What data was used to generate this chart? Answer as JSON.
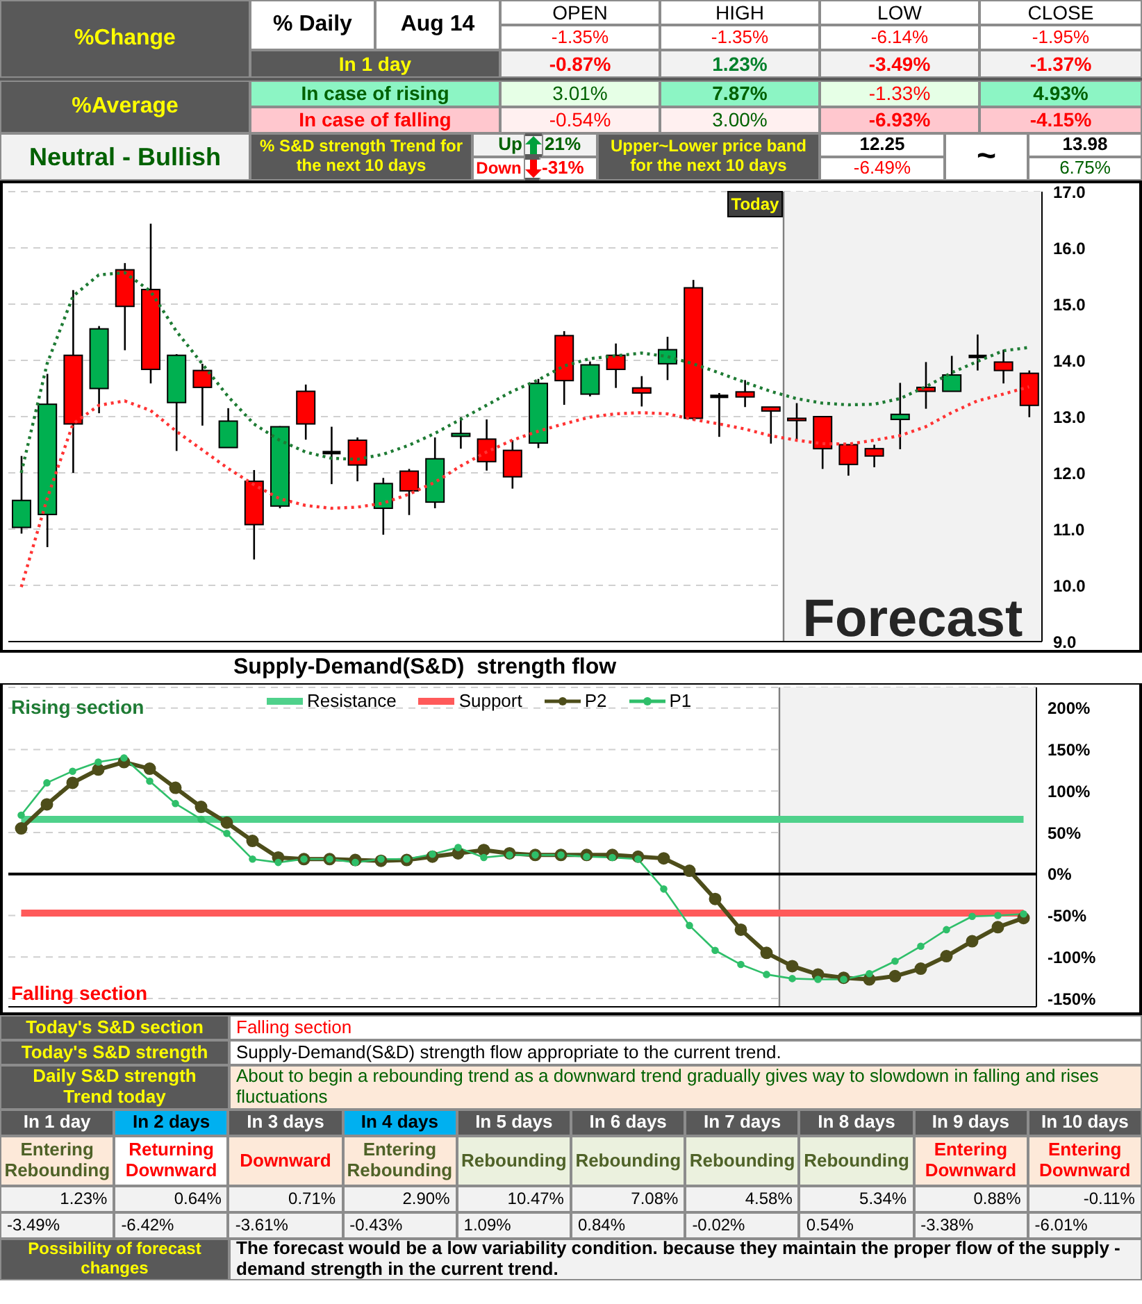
{
  "chart_data": [
    {
      "type": "other",
      "annotations": [
        "%Change",
        "% Daily",
        "Aug 14",
        "OPEN",
        "HIGH",
        "LOW",
        "CLOSE",
        "-1.35%",
        "-1.35%",
        "-6.14%",
        "-1.95%",
        "In 1 day",
        "-0.87%",
        "1.23%",
        "-3.49%",
        "-1.37%",
        "%Average",
        "In case of rising",
        "3.01%",
        "7.87%",
        "-1.33%",
        "4.93%",
        "In case of falling",
        "-0.54%",
        "3.00%",
        "-6.93%",
        "-4.15%",
        "Neutral - Bullish",
        "% S&D strength Trend for the next 10 days",
        "Up",
        "21%",
        "Down",
        "-31%",
        "Upper~Lower price band for the next 10 days",
        "12.25",
        "-6.49%",
        "~",
        "13.98",
        "6.75%"
      ]
    },
    {
      "type": "candlestick",
      "categories": [
        null,
        null,
        null,
        null,
        null,
        null,
        null,
        null,
        null,
        null,
        null,
        null,
        null,
        null,
        null,
        null,
        null,
        null,
        null,
        null,
        null,
        null,
        null,
        null,
        null,
        null,
        null,
        null,
        null,
        null,
        null,
        null,
        null,
        null,
        null,
        null,
        null,
        null,
        null,
        null
      ],
      "tick_labels": "y",
      "ohlc": [
        [
          11.03,
          12.3,
          10.92,
          11.51
        ],
        [
          11.26,
          13.76,
          10.68,
          13.22
        ],
        [
          14.09,
          15.25,
          12.0,
          12.87
        ],
        [
          13.5,
          14.61,
          13.06,
          14.56
        ],
        [
          15.61,
          15.73,
          14.18,
          14.96
        ],
        [
          15.26,
          16.43,
          13.59,
          13.84
        ],
        [
          13.25,
          14.11,
          12.39,
          14.09
        ],
        [
          13.82,
          13.94,
          12.84,
          13.52
        ],
        [
          12.45,
          13.15,
          12.45,
          12.92
        ],
        [
          11.85,
          12.05,
          10.46,
          11.08
        ],
        [
          11.41,
          12.83,
          11.37,
          12.82
        ],
        [
          13.45,
          13.57,
          12.59,
          12.87
        ],
        [
          12.36,
          12.82,
          11.8,
          12.36
        ],
        [
          12.58,
          12.63,
          11.85,
          12.14
        ],
        [
          11.37,
          11.91,
          10.9,
          11.81
        ],
        [
          12.03,
          12.07,
          11.25,
          11.68
        ],
        [
          11.48,
          12.63,
          11.37,
          12.25
        ],
        [
          12.65,
          12.99,
          12.43,
          12.7
        ],
        [
          12.6,
          12.95,
          12.04,
          12.2
        ],
        [
          12.4,
          12.58,
          11.72,
          11.93
        ],
        [
          12.53,
          13.67,
          12.44,
          13.59
        ],
        [
          14.44,
          14.52,
          13.21,
          13.64
        ],
        [
          13.4,
          13.98,
          13.36,
          13.92
        ],
        [
          14.09,
          14.3,
          13.51,
          13.84
        ],
        [
          13.51,
          13.72,
          13.18,
          13.42
        ],
        [
          13.94,
          14.42,
          13.65,
          14.19
        ],
        [
          15.29,
          15.43,
          12.93,
          12.97
        ],
        [
          13.36,
          13.42,
          12.64,
          13.36
        ],
        [
          13.44,
          13.65,
          13.17,
          13.35
        ],
        [
          13.17,
          13.17,
          12.52,
          13.1
        ],
        [
          12.97,
          13.24,
          12.6,
          12.93
        ],
        [
          13.0,
          13.0,
          12.07,
          12.43
        ],
        [
          12.5,
          12.5,
          11.95,
          12.15
        ],
        [
          12.43,
          12.5,
          12.1,
          12.3
        ],
        [
          12.95,
          13.6,
          12.42,
          13.04
        ],
        [
          13.52,
          13.97,
          13.14,
          13.45
        ],
        [
          13.45,
          14.08,
          13.45,
          13.74
        ],
        [
          14.07,
          14.46,
          13.82,
          14.07
        ],
        [
          13.97,
          14.19,
          13.59,
          13.82
        ],
        [
          13.77,
          13.82,
          12.99,
          13.2
        ]
      ],
      "colors": [
        "#00b050",
        "#00b050",
        "#ff0000",
        "#00b050",
        "#ff0000",
        "#ff0000",
        "#00b050",
        "#ff0000",
        "#00b050",
        "#ff0000",
        "#00b050",
        "#ff0000",
        "#000000",
        "#ff0000",
        "#00b050",
        "#ff0000",
        "#00b050",
        "#00b050",
        "#ff0000",
        "#ff0000",
        "#00b050",
        "#ff0000",
        "#00b050",
        "#ff0000",
        "#ff0000",
        "#00b050",
        "#ff0000",
        "#000000",
        "#ff0000",
        "#ff0000",
        "#ff0000",
        "#ff0000",
        "#ff0000",
        "#ff0000",
        "#00b050",
        "#ff0000",
        "#00b050",
        "#000000",
        "#ff0000",
        "#ff0000"
      ],
      "series": [
        {
          "type": "line",
          "color": "#1e7b34",
          "line_style": "dotted",
          "values": [
            12.0,
            13.94,
            15.14,
            15.52,
            15.56,
            15.23,
            14.52,
            13.94,
            13.36,
            12.87,
            12.58,
            12.37,
            12.26,
            12.24,
            12.33,
            12.49,
            12.7,
            12.95,
            13.2,
            13.45,
            13.65,
            13.9,
            14.03,
            14.08,
            14.13,
            14.07,
            13.94,
            13.78,
            13.61,
            13.45,
            13.32,
            13.24,
            13.21,
            13.22,
            13.32,
            13.53,
            13.78,
            13.98,
            14.17,
            14.23
          ]
        },
        {
          "type": "line",
          "color": "#ff3333",
          "line_style": "dotted",
          "values": [
            9.97,
            11.54,
            12.87,
            13.2,
            13.28,
            13.11,
            12.74,
            12.41,
            12.08,
            11.79,
            11.54,
            11.42,
            11.37,
            11.39,
            11.46,
            11.62,
            11.83,
            12.12,
            12.37,
            12.58,
            12.74,
            12.87,
            12.99,
            13.05,
            13.07,
            13.05,
            12.95,
            12.87,
            12.78,
            12.66,
            12.58,
            12.52,
            12.51,
            12.58,
            12.66,
            12.82,
            13.07,
            13.28,
            13.4,
            13.53
          ]
        }
      ],
      "marker": "none",
      "ylim": [
        9,
        17
      ],
      "yticks": [
        {
          "value": 9,
          "label": "9.0"
        },
        {
          "value": 10,
          "label": "10.0"
        },
        {
          "value": 11,
          "label": "11.0"
        },
        {
          "value": 12,
          "label": "12.0"
        },
        {
          "value": 13,
          "label": "13.0"
        },
        {
          "value": 14,
          "label": "14.0"
        },
        {
          "value": 15,
          "label": "15.0"
        },
        {
          "value": 16,
          "label": "16.0"
        },
        {
          "value": 17,
          "label": "17.0"
        }
      ],
      "grid": "y",
      "annotations": [
        "Today",
        "Forecast"
      ]
    },
    {
      "type": "line",
      "title": "Supply-Demand(S&D)  strength flow",
      "categories": [
        null,
        null,
        null,
        null,
        null,
        null,
        null,
        null,
        null,
        null,
        null,
        null,
        null,
        null,
        null,
        null,
        null,
        null,
        null,
        null,
        null,
        null,
        null,
        null,
        null,
        null,
        null,
        null,
        null,
        null,
        null,
        null,
        null,
        null,
        null,
        null,
        null,
        null,
        null,
        null
      ],
      "tick_labels": "y",
      "legend": "top",
      "series": [
        {
          "name": "Resistance",
          "color": "#4fd18b",
          "marker": "none",
          "values": [
            66,
            66,
            66,
            66,
            66,
            66,
            66,
            66,
            66,
            66,
            66,
            66,
            66,
            66,
            66,
            66,
            66,
            66,
            66,
            66,
            66,
            66,
            66,
            66,
            66,
            66,
            66,
            66,
            66,
            66,
            66,
            66,
            66,
            66,
            66,
            66,
            66,
            66,
            66,
            66
          ]
        },
        {
          "name": "Support",
          "color": "#ff5a5a",
          "marker": "none",
          "values": [
            -47,
            -47,
            -47,
            -47,
            -47,
            -47,
            -47,
            -47,
            -47,
            -47,
            -47,
            -47,
            -47,
            -47,
            -47,
            -47,
            -47,
            -47,
            -47,
            -47,
            -47,
            -47,
            -47,
            -47,
            -47,
            -47,
            -47,
            -47,
            -47,
            -47,
            -47,
            -47,
            -47,
            -47,
            -47,
            -47,
            -47,
            -47,
            -47,
            -47
          ]
        },
        {
          "name": "P2",
          "color": "#4d4d1a",
          "marker": "circle",
          "values": [
            55,
            84,
            110,
            126,
            135,
            127,
            104,
            81,
            62,
            40,
            20,
            18,
            18,
            17,
            16,
            17,
            21,
            25,
            29,
            25,
            23,
            23,
            23,
            23,
            21,
            19,
            4,
            -30,
            -67,
            -95,
            -111,
            -121,
            -125,
            -127,
            -123,
            -114,
            -99,
            -81,
            -64,
            -53
          ]
        },
        {
          "name": "P1",
          "color": "#2fbf6a",
          "marker": "circle",
          "values": [
            71,
            110,
            124,
            135,
            140,
            112,
            85,
            66,
            49,
            18,
            14,
            18,
            18,
            14,
            18,
            18,
            24,
            32,
            20,
            23,
            23,
            23,
            21,
            20,
            18,
            -18,
            -62,
            -92,
            -109,
            -121,
            -126,
            -127,
            -127,
            -120,
            -105,
            -87,
            -67,
            -51,
            -50,
            -48
          ]
        }
      ],
      "ylim": [
        -160,
        225
      ],
      "yticks": [
        {
          "value": -150,
          "label": "-150%"
        },
        {
          "value": -100,
          "label": "-100%"
        },
        {
          "value": -50,
          "label": "-50%"
        },
        {
          "value": 0,
          "label": "0%"
        },
        {
          "value": 50,
          "label": "50%"
        },
        {
          "value": 100,
          "label": "100%"
        },
        {
          "value": 150,
          "label": "150%"
        },
        {
          "value": 200,
          "label": "200%"
        }
      ],
      "grid": "y",
      "ref_lines": [
        {
          "axis": "y",
          "value": 0,
          "color": "#000000"
        }
      ],
      "annotations": [
        "Rising section",
        "Falling section"
      ]
    },
    {
      "type": "other",
      "annotations": [
        "Today's S&D section",
        "Falling section",
        "Today's S&D strength",
        "Supply-Demand(S&D) strength flow appropriate to the current trend.",
        "Daily S&D strength Trend today",
        "About to begin a rebounding trend as a downward trend gradually gives way to slowdown in falling and rises fluctuations",
        "In 1 day",
        "In 2 days",
        "In 3 days",
        "In 4 days",
        "In 5 days",
        "In 6 days",
        "In 7 days",
        "In 8 days",
        "In 9 days",
        "In 10 days",
        "Entering Rebounding",
        "Returning Downward",
        "Downward",
        "Entering Rebounding",
        "Rebounding",
        "Rebounding",
        "Rebounding",
        "Rebounding",
        "Entering Downward",
        "Entering Downward",
        "1.23%",
        "0.64%",
        "0.71%",
        "2.90%",
        "10.47%",
        "7.08%",
        "4.58%",
        "5.34%",
        "0.88%",
        "-0.11%",
        "-3.49%",
        "-6.42%",
        "-3.61%",
        "-0.43%",
        "1.09%",
        "0.84%",
        "-0.02%",
        "0.54%",
        "-3.38%",
        "-6.01%",
        "Possibility of forecast changes",
        "The forecast would be a low variability condition. because they maintain the proper flow of the supply - demand strength in the current trend."
      ]
    }
  ]
}
